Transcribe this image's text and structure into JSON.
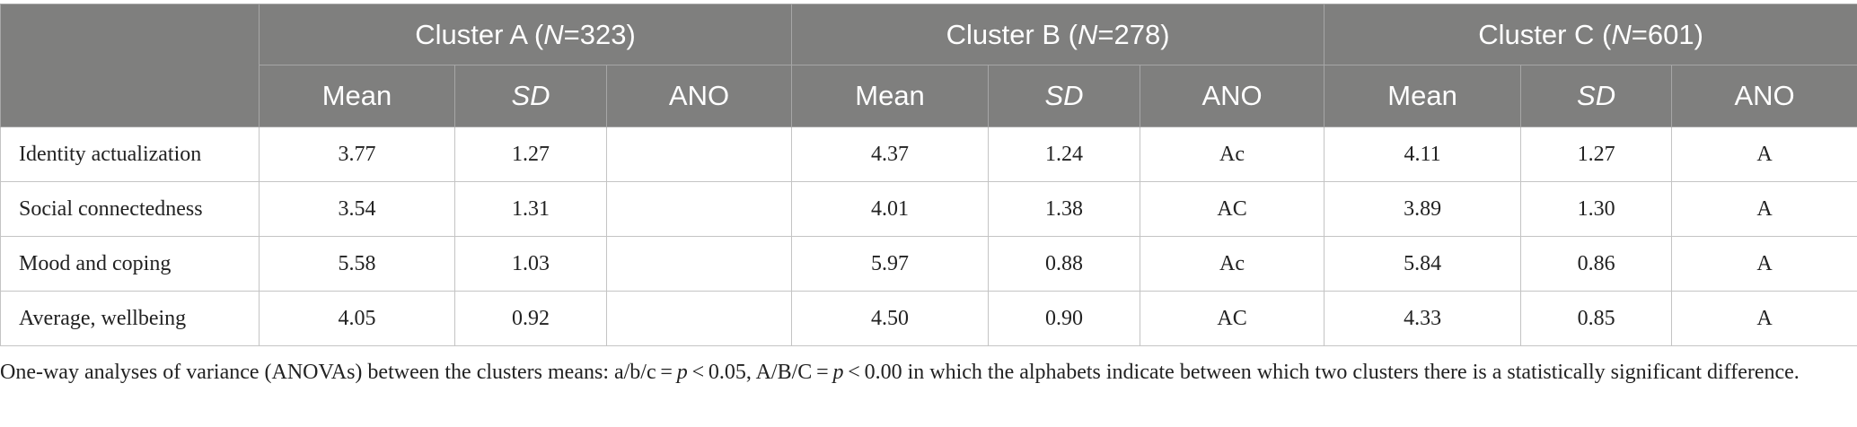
{
  "table": {
    "groups": [
      [
        "Cluster A (",
        "N",
        "=323)"
      ],
      [
        "Cluster B (",
        "N",
        "=278)"
      ],
      [
        "Cluster C (",
        "N",
        "=601)"
      ]
    ],
    "subheaders": [
      "Mean",
      "SD",
      "ANO"
    ],
    "rows": [
      [
        "Identity actualization",
        "3.77",
        "1.27",
        null,
        "4.37",
        "1.24",
        "Ac",
        "4.11",
        "1.27",
        "A"
      ],
      [
        "Social connectedness",
        "3.54",
        "1.31",
        null,
        "4.01",
        "1.38",
        "AC",
        "3.89",
        "1.30",
        "A"
      ],
      [
        "Mood and coping",
        "5.58",
        "1.03",
        null,
        "5.97",
        "0.88",
        "Ac",
        "5.84",
        "0.86",
        "A"
      ],
      [
        "Average, wellbeing",
        "4.05",
        "0.92",
        null,
        "4.50",
        "0.90",
        "AC",
        "4.33",
        "0.85",
        "A"
      ]
    ]
  },
  "footnote": [
    "One-way analyses of variance (ANOVAs) between the clusters means: a/b/c = ",
    "p",
    " < 0.05, A/B/C = ",
    "p",
    " < 0.00 in which the alphabets indicate between which two clusters there is a statistically significant difference."
  ]
}
